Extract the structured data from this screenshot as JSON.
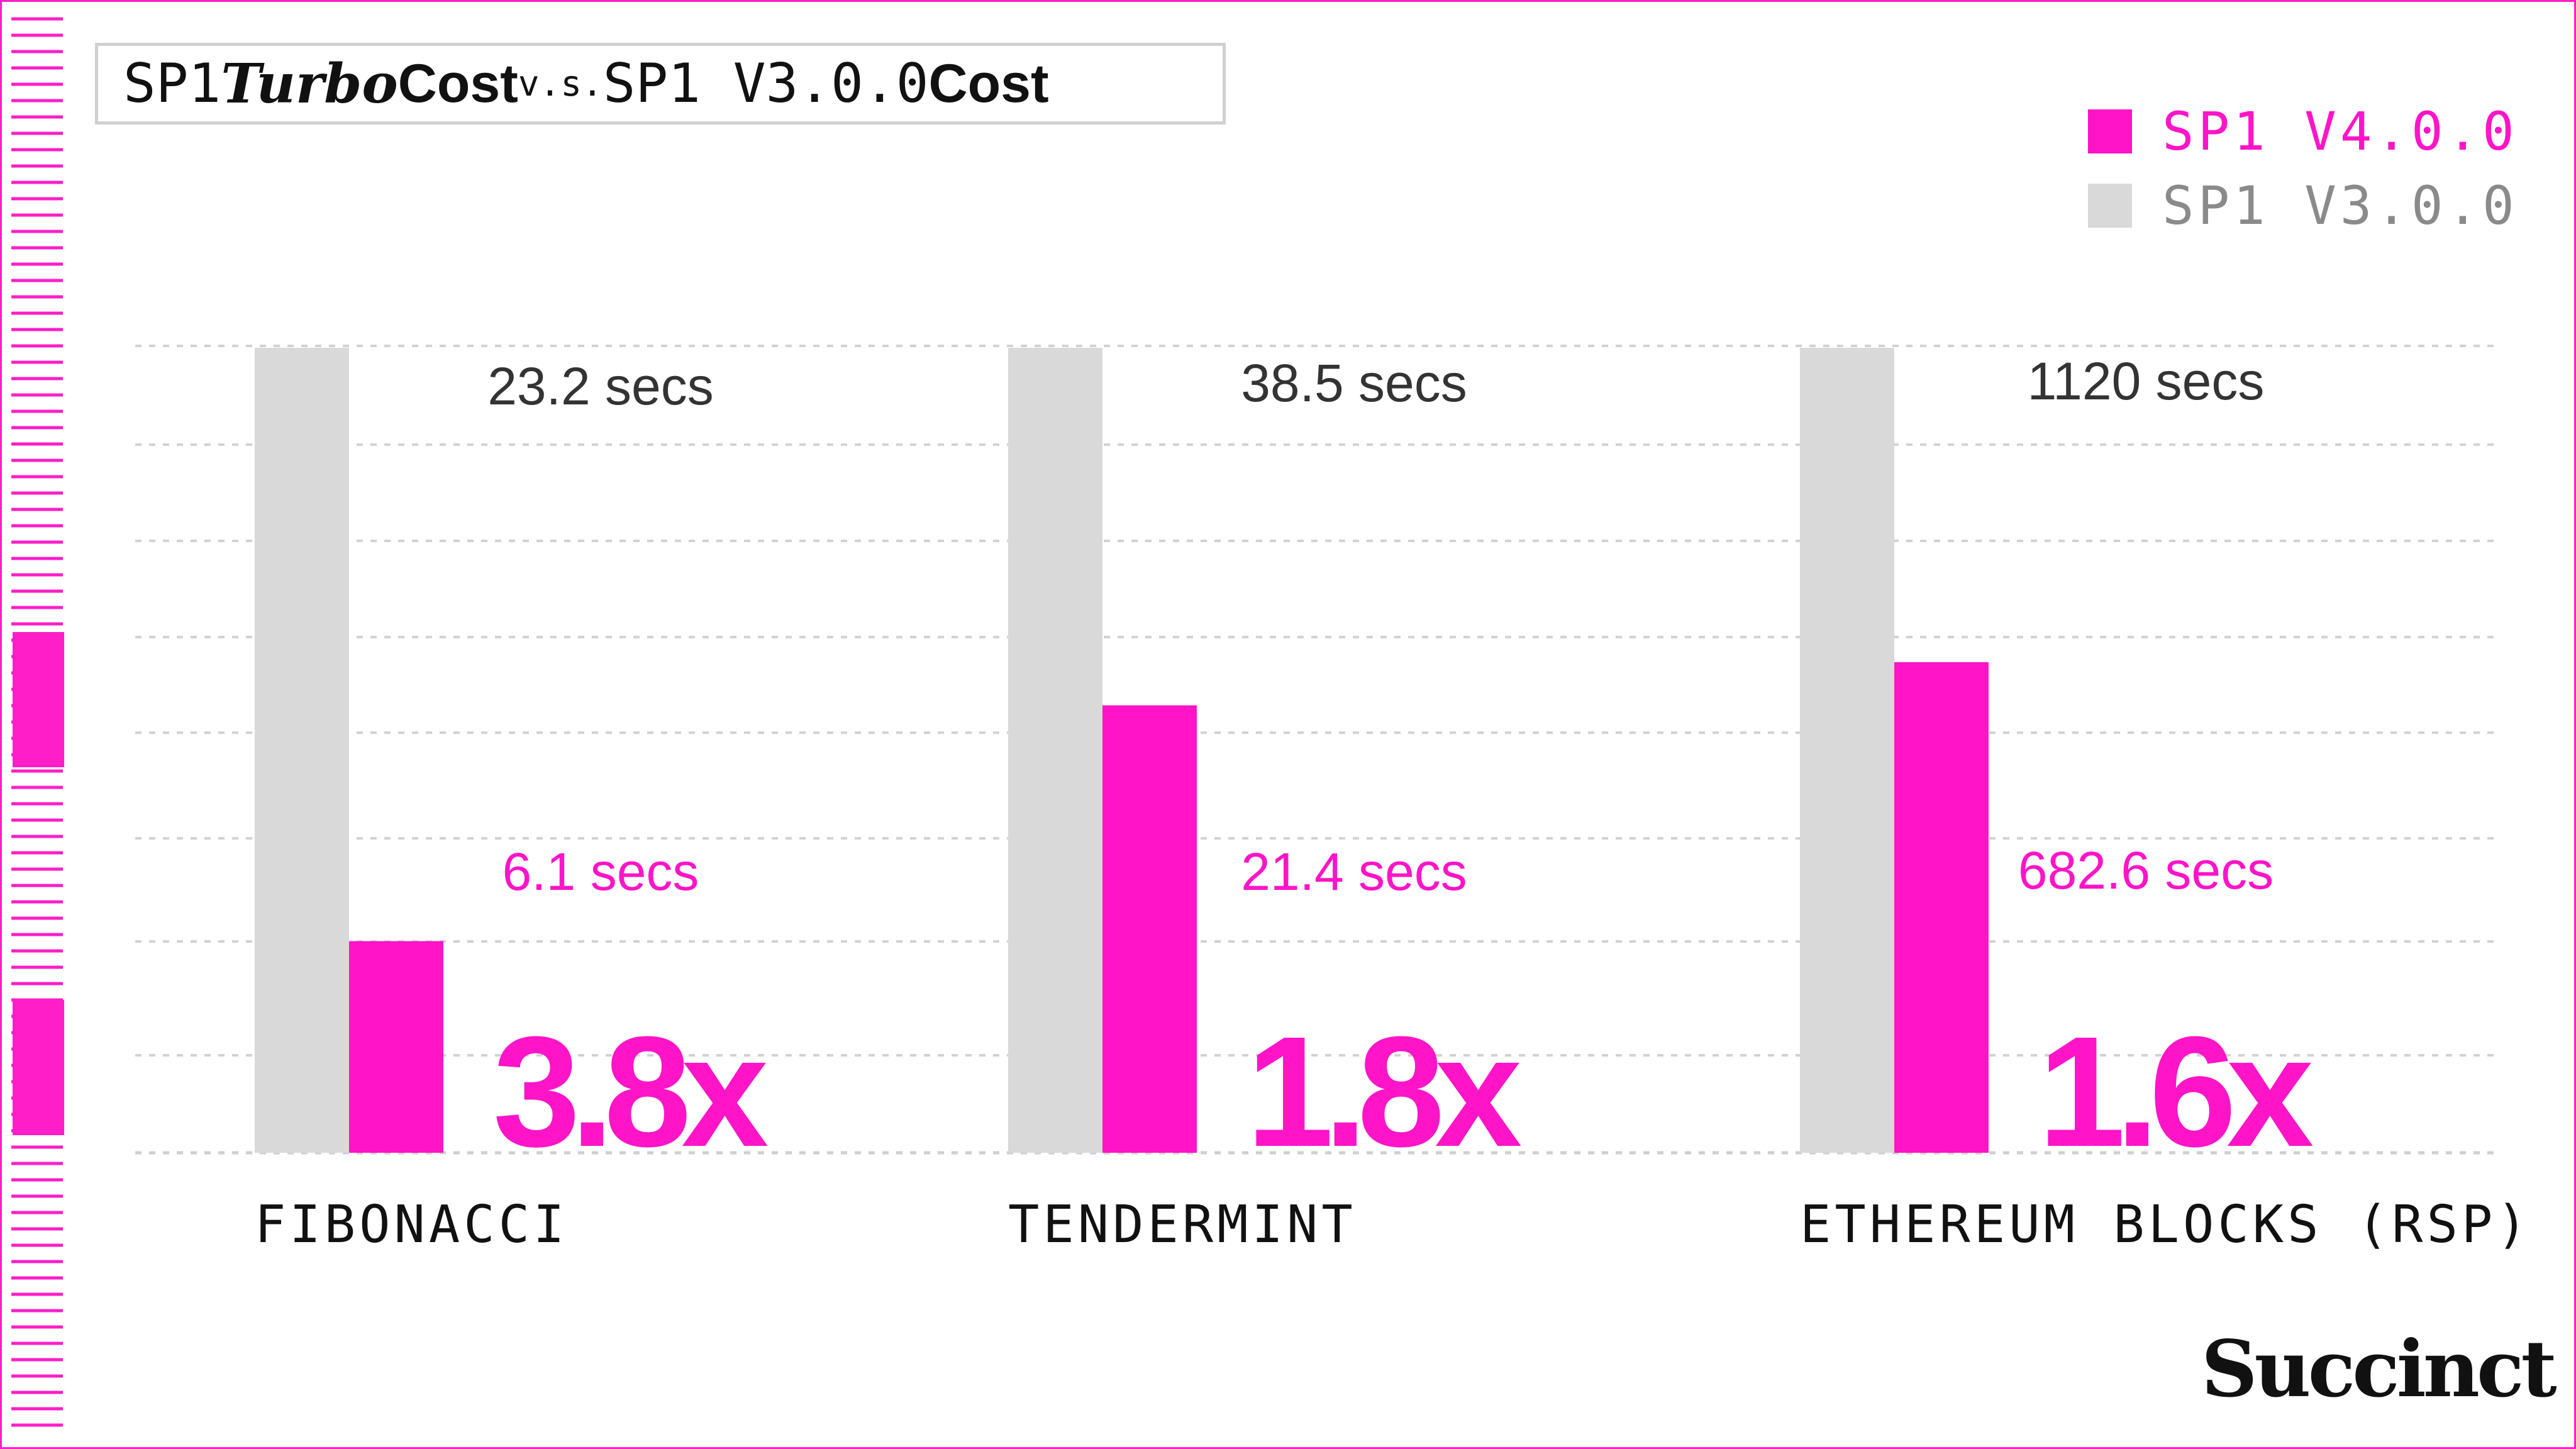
{
  "title": {
    "part1": "SP1 ",
    "part2": "Turbo",
    "part3": " Cost ",
    "part4": "v.s.",
    "part5": " SP1 V3.0.0 ",
    "part6": "Cost"
  },
  "logo": "Succinct",
  "colors": {
    "v4": "#ff14c8",
    "v3": "#d9d9d9",
    "accent": "#ff1ec8",
    "v3_legend_text": "#8a8a8a",
    "v3_value_text": "#333333",
    "category_text": "#111111"
  },
  "legend": [
    {
      "label": "SP1 V4.0.0",
      "color": "#ff14c8",
      "text_color": "#ff14c8"
    },
    {
      "label": "SP1 V3.0.0",
      "color": "#d9d9d9",
      "text_color": "#8a8a8a"
    }
  ],
  "chart_data": {
    "type": "bar",
    "categories": [
      "FIBONACCI",
      "TENDERMINT",
      "ETHEREUM BLOCKS (RSP)"
    ],
    "series": [
      {
        "name": "SP1 V3.0.0",
        "values": [
          23.2,
          38.5,
          1120
        ]
      },
      {
        "name": "SP1 V4.0.0",
        "values": [
          6.1,
          21.4,
          682.6
        ]
      }
    ],
    "value_labels": {
      "SP1 V3.0.0": [
        "23.2 secs",
        "38.5 secs",
        "1120 secs"
      ],
      "SP1 V4.0.0": [
        "6.1 secs",
        "21.4 secs",
        "682.6 secs"
      ]
    },
    "speedups": [
      "3.8x",
      "1.8x",
      "1.6x"
    ],
    "unit": "secs",
    "normalized_per_category": true,
    "grid": true,
    "legend_position": "top-right"
  }
}
